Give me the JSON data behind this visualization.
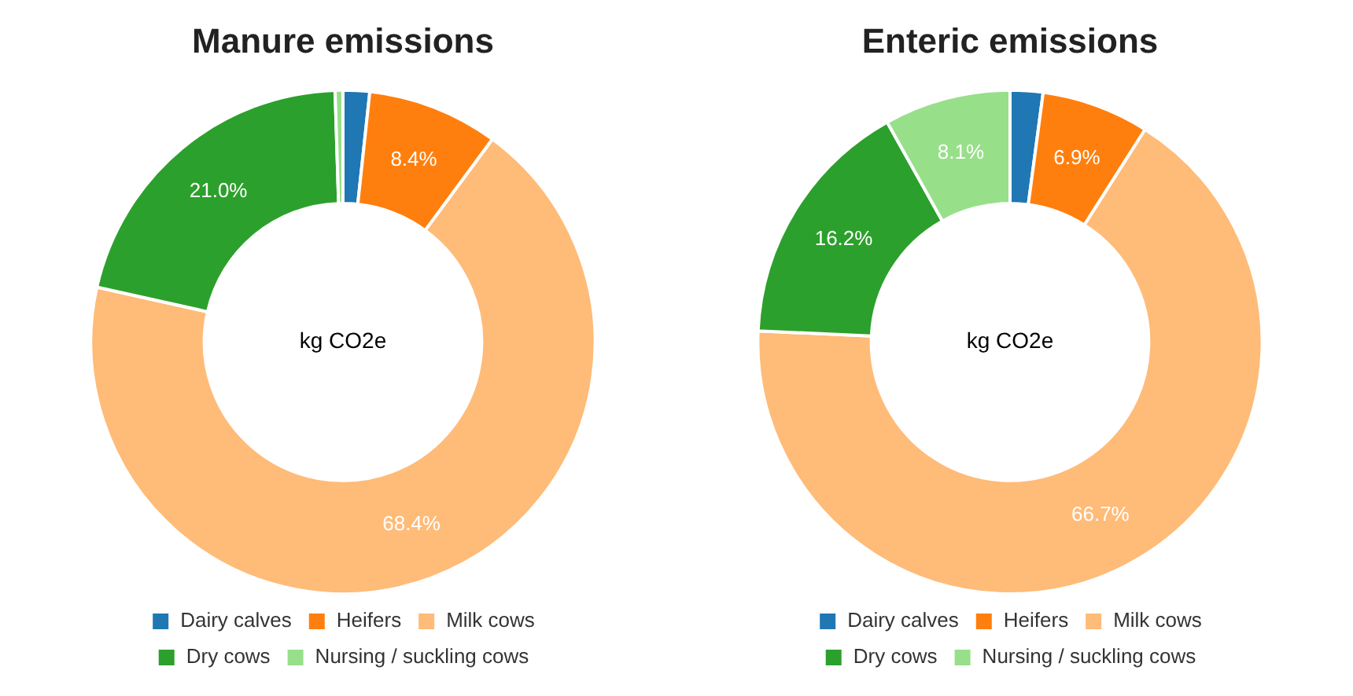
{
  "chart_data": [
    {
      "type": "donut",
      "title": "Manure emissions",
      "categories": [
        "Dairy calves",
        "Heifers",
        "Milk cows",
        "Dry cows",
        "Nursing / suckling cows"
      ],
      "values": [
        1.7,
        8.4,
        68.4,
        21.0,
        0.5
      ],
      "colors": [
        "#1f77b4",
        "#ff7f0e",
        "#ffbb78",
        "#2ca02c",
        "#98df8a"
      ],
      "value_labels": [
        null,
        "8.4%",
        "68.4%",
        "21.0%",
        null
      ],
      "annotations": [
        "kg CO2e"
      ],
      "legend": "bottom"
    },
    {
      "type": "donut",
      "title": "Enteric emissions",
      "categories": [
        "Dairy calves",
        "Heifers",
        "Milk cows",
        "Dry cows",
        "Nursing / suckling cows"
      ],
      "values": [
        2.1,
        6.9,
        66.7,
        16.2,
        8.1
      ],
      "colors": [
        "#1f77b4",
        "#ff7f0e",
        "#ffbb78",
        "#2ca02c",
        "#98df8a"
      ],
      "value_labels": [
        null,
        "6.9%",
        "66.7%",
        "16.2%",
        "8.1%"
      ],
      "annotations": [
        "kg CO2e"
      ],
      "legend": "bottom"
    }
  ]
}
